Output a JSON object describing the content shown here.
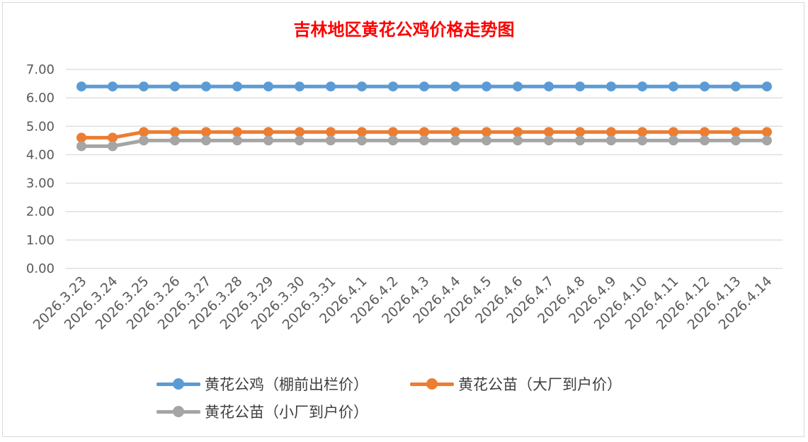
{
  "chart_data": {
    "type": "line",
    "title": "吉林地区黄花公鸡价格走势图",
    "xlabel": "",
    "ylabel": "",
    "ylim": [
      0,
      7
    ],
    "yticks": [
      "0.00",
      "1.00",
      "2.00",
      "3.00",
      "4.00",
      "5.00",
      "6.00",
      "7.00"
    ],
    "grid": true,
    "legend_position": "bottom",
    "categories": [
      "2026.3.23",
      "2026.3.24",
      "2026.3.25",
      "2026.3.26",
      "2026.3.27",
      "2026.3.28",
      "2026.3.29",
      "2026.3.30",
      "2026.3.31",
      "2026.4.1",
      "2026.4.2",
      "2026.4.3",
      "2026.4.4",
      "2026.4.5",
      "2026.4.6",
      "2026.4.7",
      "2026.4.8",
      "2026.4.9",
      "2026.4.10",
      "2026.4.11",
      "2026.4.12",
      "2026.4.13",
      "2026.4.14"
    ],
    "series": [
      {
        "name": "黄花公鸡（棚前出栏价）",
        "color": "#5b9bd5",
        "values": [
          6.4,
          6.4,
          6.4,
          6.4,
          6.4,
          6.4,
          6.4,
          6.4,
          6.4,
          6.4,
          6.4,
          6.4,
          6.4,
          6.4,
          6.4,
          6.4,
          6.4,
          6.4,
          6.4,
          6.4,
          6.4,
          6.4,
          6.4
        ]
      },
      {
        "name": "黄花公苗（大厂到户价）",
        "color": "#ed7d31",
        "values": [
          4.6,
          4.6,
          4.8,
          4.8,
          4.8,
          4.8,
          4.8,
          4.8,
          4.8,
          4.8,
          4.8,
          4.8,
          4.8,
          4.8,
          4.8,
          4.8,
          4.8,
          4.8,
          4.8,
          4.8,
          4.8,
          4.8,
          4.8
        ]
      },
      {
        "name": "黄花公苗（小厂到户价）",
        "color": "#a5a5a5",
        "values": [
          4.3,
          4.3,
          4.5,
          4.5,
          4.5,
          4.5,
          4.5,
          4.5,
          4.5,
          4.5,
          4.5,
          4.5,
          4.5,
          4.5,
          4.5,
          4.5,
          4.5,
          4.5,
          4.5,
          4.5,
          4.5,
          4.5,
          4.5
        ]
      }
    ]
  }
}
